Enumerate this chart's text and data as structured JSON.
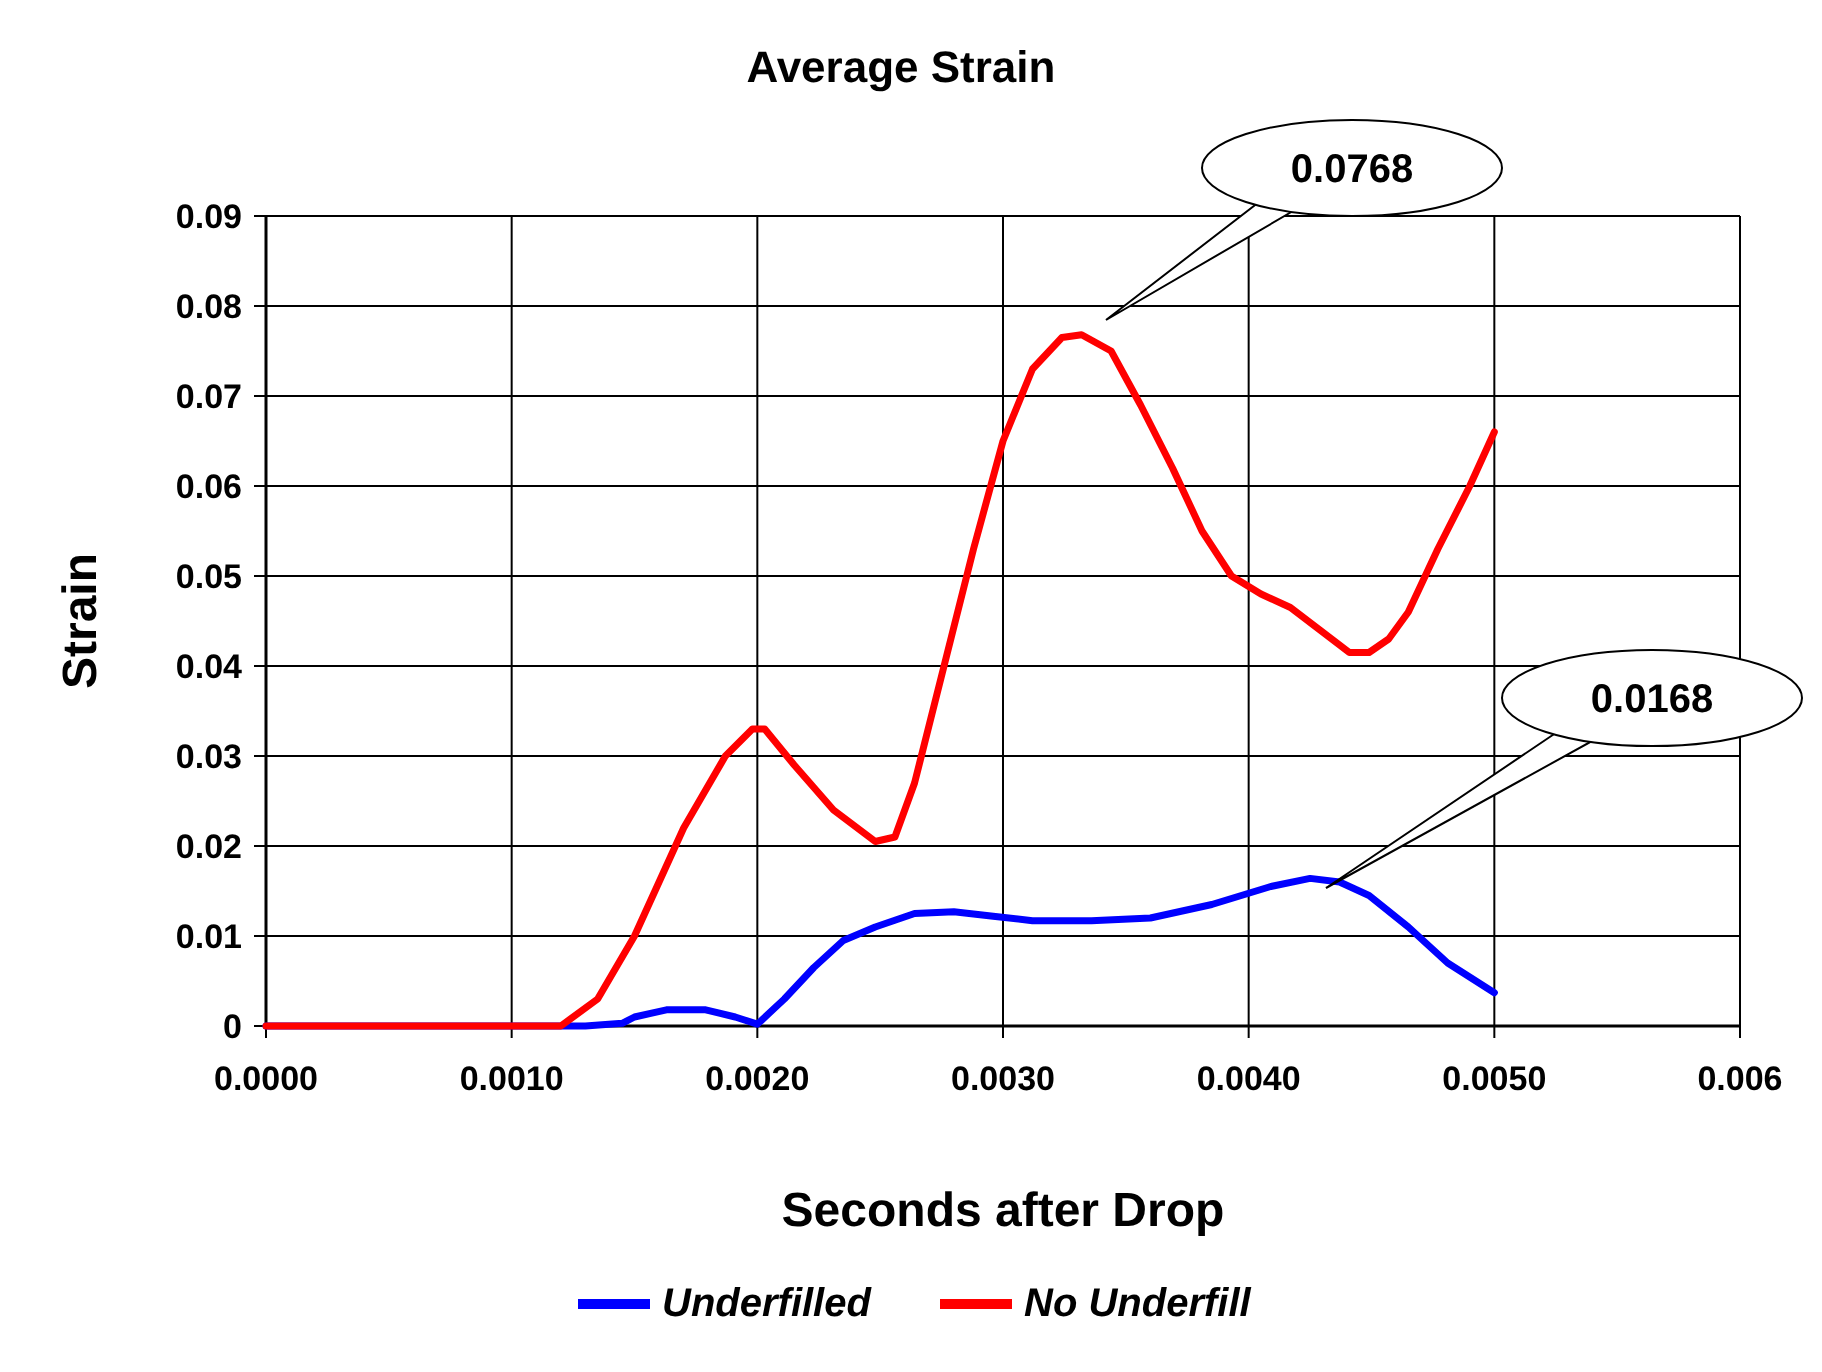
{
  "chart_data": {
    "type": "line",
    "title": "Average Strain",
    "xlabel": "Seconds after Drop",
    "ylabel": "Strain",
    "xlim": [
      0,
      0.006
    ],
    "xticks": [
      {
        "value": 0,
        "label": "0.0000"
      },
      {
        "value": 0.001,
        "label": "0.0010"
      },
      {
        "value": 0.002,
        "label": "0.0020"
      },
      {
        "value": 0.003,
        "label": "0.0030"
      },
      {
        "value": 0.004,
        "label": "0.0040"
      },
      {
        "value": 0.005,
        "label": "0.0050"
      },
      {
        "value": 0.006,
        "label": "0.006"
      }
    ],
    "ylim": [
      0,
      0.09
    ],
    "yticks": [
      0,
      0.01,
      0.02,
      0.03,
      0.04,
      0.05,
      0.06,
      0.07,
      0.08,
      0.09
    ],
    "grid": true,
    "legend": "bottom",
    "marker": "none",
    "line_style": "solid",
    "series": [
      {
        "name": "Underfilled",
        "color": "#0000ff",
        "x": [
          0,
          0.0013,
          0.00145,
          0.0015,
          0.00163,
          0.00179,
          0.00191,
          0.002,
          0.00211,
          0.00223,
          0.00235,
          0.00248,
          0.00264,
          0.0028,
          0.00296,
          0.00312,
          0.00336,
          0.0036,
          0.00385,
          0.00409,
          0.00425,
          0.00437,
          0.00449,
          0.00465,
          0.00481,
          0.005
        ],
        "values": [
          0,
          0,
          0.0003,
          0.001,
          0.0018,
          0.0018,
          0.001,
          0.0002,
          0.003,
          0.0065,
          0.0095,
          0.011,
          0.0125,
          0.0127,
          0.0122,
          0.0117,
          0.0117,
          0.012,
          0.0135,
          0.0155,
          0.0164,
          0.016,
          0.0145,
          0.011,
          0.007,
          0.0037
        ]
      },
      {
        "name": "No Underfill",
        "color": "#ff0000",
        "x": [
          0,
          0.0012,
          0.00135,
          0.0015,
          0.0017,
          0.00187,
          0.00198,
          0.00203,
          0.00215,
          0.00231,
          0.00248,
          0.00256,
          0.00264,
          0.00276,
          0.00288,
          0.003,
          0.00312,
          0.00324,
          0.00332,
          0.00344,
          0.00356,
          0.00369,
          0.00381,
          0.00393,
          0.00405,
          0.00417,
          0.00429,
          0.00441,
          0.00449,
          0.00457,
          0.00465,
          0.00477,
          0.0049,
          0.005
        ],
        "values": [
          0,
          0,
          0.003,
          0.01,
          0.022,
          0.03,
          0.033,
          0.033,
          0.029,
          0.024,
          0.0205,
          0.021,
          0.027,
          0.04,
          0.053,
          0.065,
          0.073,
          0.0765,
          0.0768,
          0.075,
          0.069,
          0.062,
          0.055,
          0.05,
          0.048,
          0.0465,
          0.044,
          0.0415,
          0.0415,
          0.043,
          0.046,
          0.053,
          0.06,
          0.066
        ]
      }
    ],
    "annotations": [
      "0.0768",
      "0.0168"
    ]
  }
}
